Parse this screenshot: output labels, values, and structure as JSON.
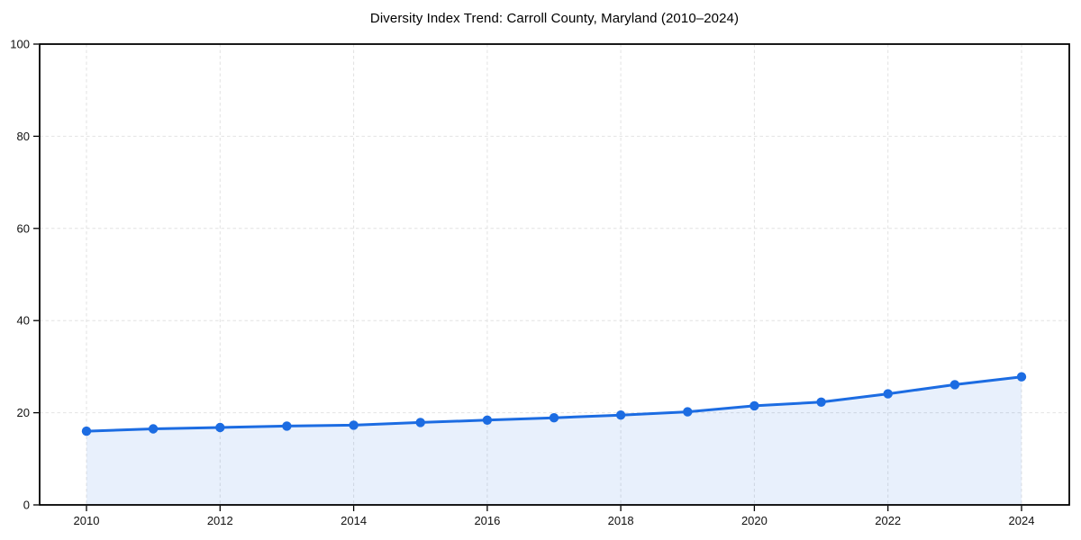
{
  "chart_data": {
    "type": "line",
    "title": "Diversity Index Trend: Carroll County, Maryland (2010–2024)",
    "x": [
      2010,
      2011,
      2012,
      2013,
      2014,
      2015,
      2016,
      2017,
      2018,
      2019,
      2020,
      2021,
      2022,
      2023,
      2024
    ],
    "series": [
      {
        "name": "Diversity Index",
        "values": [
          16.0,
          16.5,
          16.8,
          17.1,
          17.3,
          17.9,
          18.4,
          18.9,
          19.5,
          20.2,
          21.5,
          22.3,
          24.1,
          26.1,
          27.8
        ]
      }
    ],
    "xlabel": "",
    "ylabel": "",
    "ylim": [
      0,
      100
    ],
    "yticks": [
      0,
      20,
      40,
      60,
      80,
      100
    ],
    "xticks": [
      2010,
      2012,
      2014,
      2016,
      2018,
      2020,
      2022,
      2024
    ],
    "grid": {
      "visible": true,
      "style": "dashed",
      "color": "#e2e2e2"
    },
    "legend": "none",
    "marker": "circle",
    "fill_opacity": 0.1,
    "colors": {
      "line": "#1c6ce2",
      "marker": "#1c6ce2",
      "fill": "#1c6ce2",
      "axis": "#000000",
      "tick_text": "#111111",
      "background": "#ffffff"
    }
  }
}
